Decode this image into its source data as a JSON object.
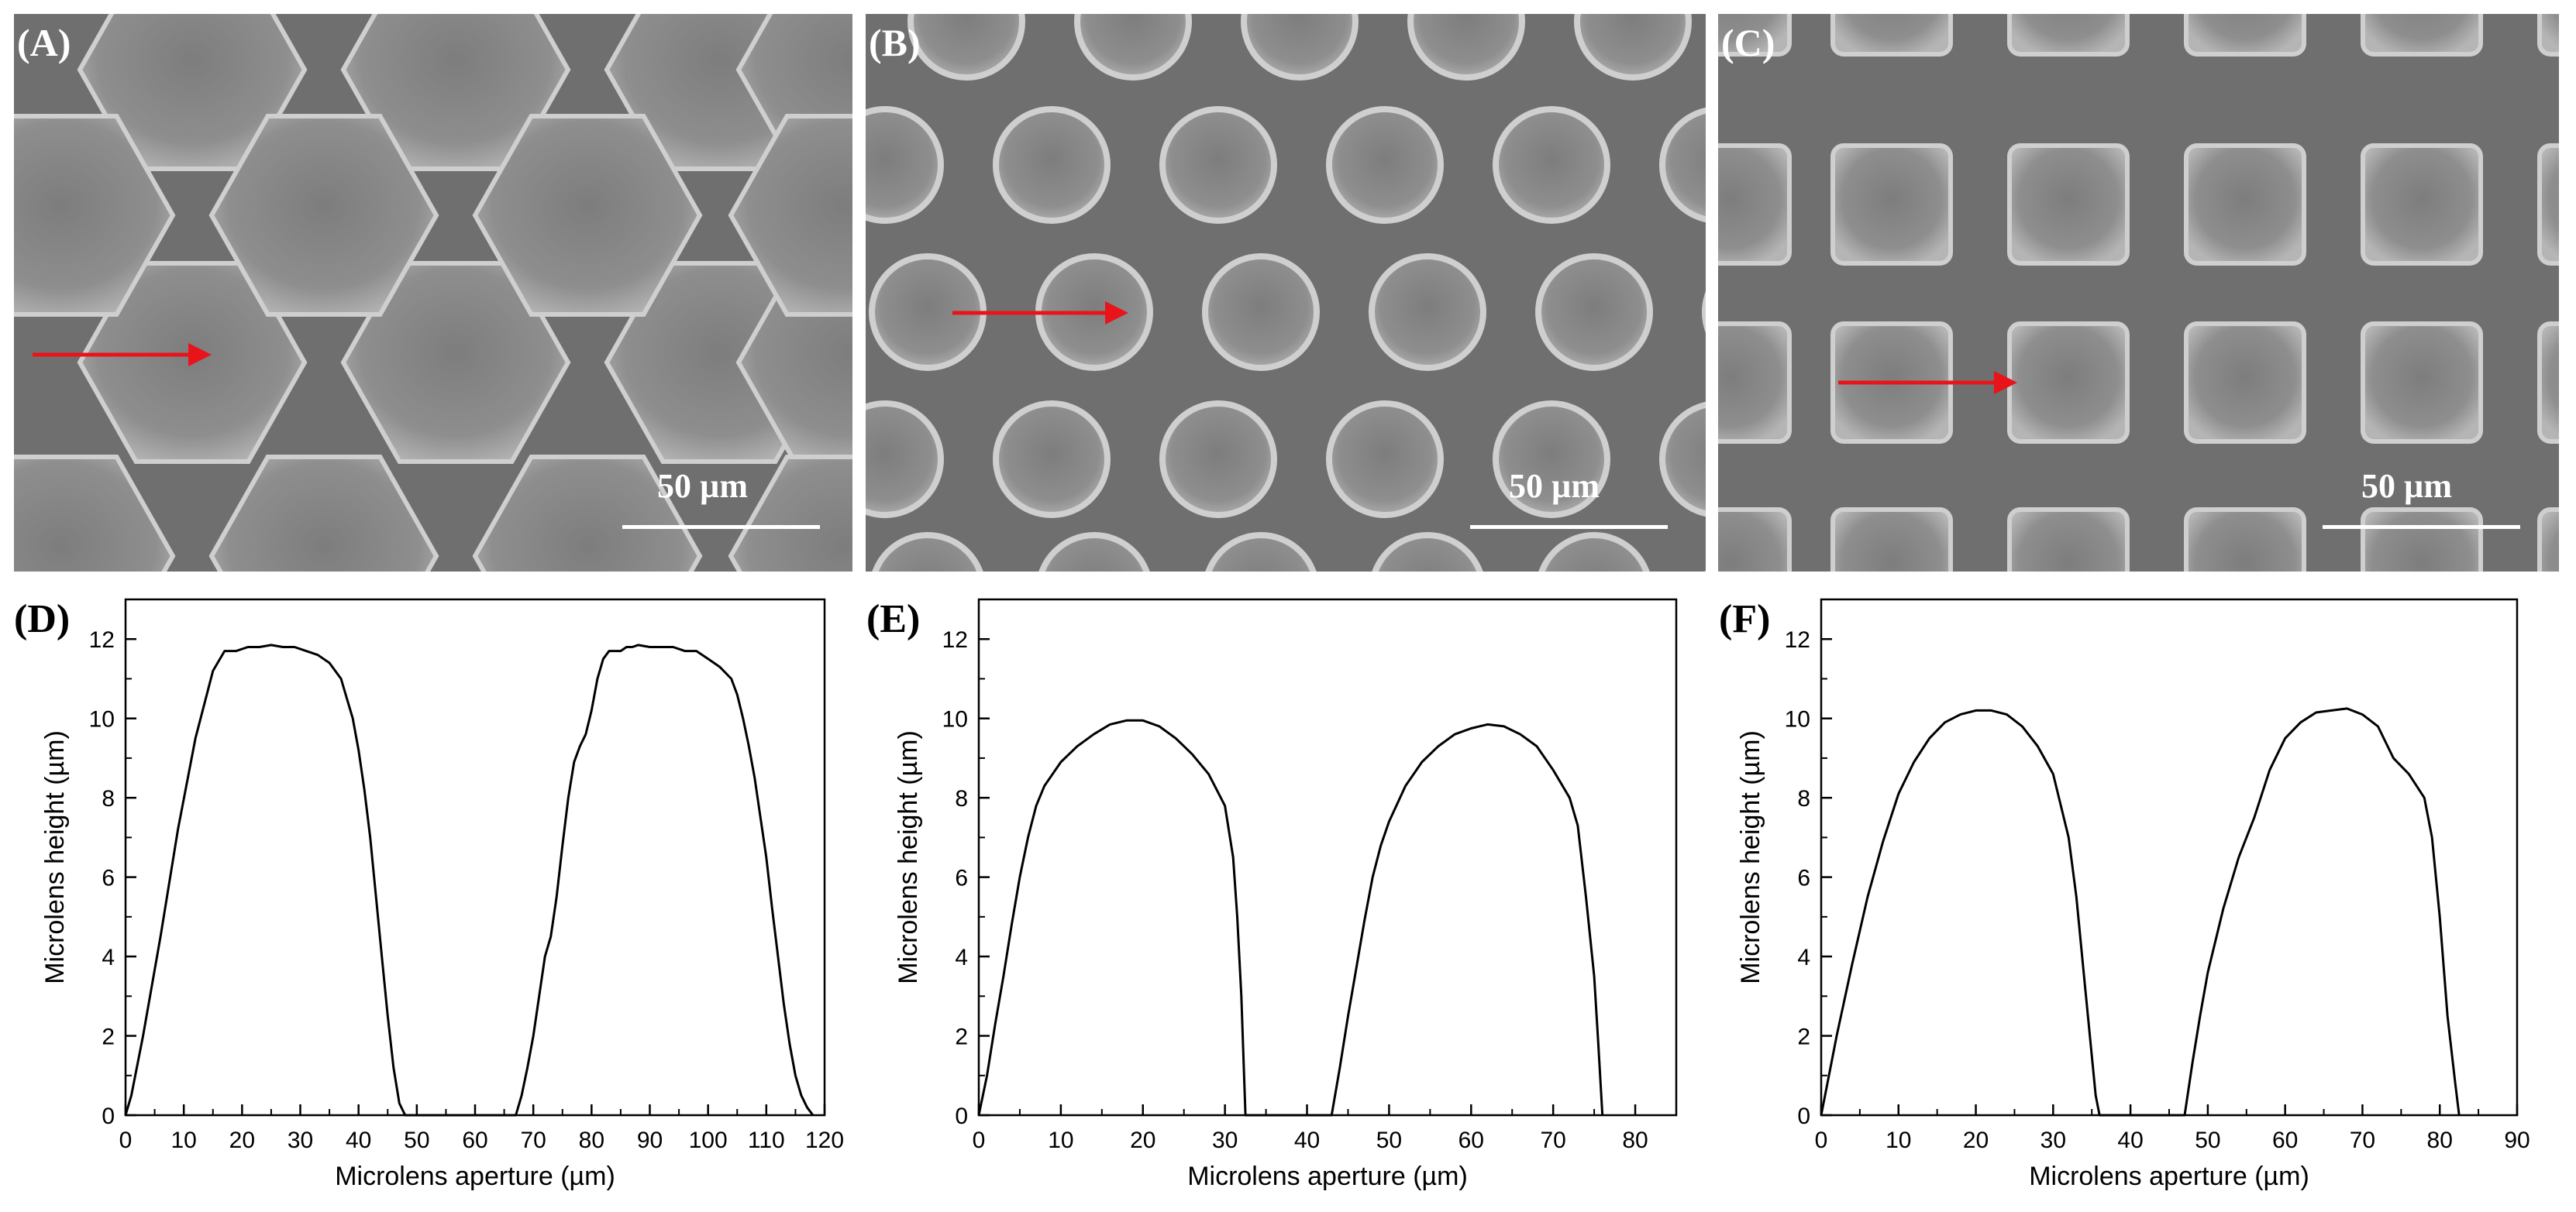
{
  "sem_panels": [
    {
      "label": "(A)",
      "scale_text": "50 µm",
      "shape": "hexagon"
    },
    {
      "label": "(B)",
      "scale_text": "50 µm",
      "shape": "circle"
    },
    {
      "label": "(C)",
      "scale_text": "50 µm",
      "shape": "square"
    }
  ],
  "colors": {
    "arrow": "#e8141a",
    "sem_bg": "#6f6f6f",
    "lens_fill": "#8a8a8a",
    "lens_rim": "#cfcfcf",
    "line": "#000000"
  },
  "chart_data": [
    {
      "panel_label": "(D)",
      "type": "line",
      "xlabel": "Microlens aperture (µm)",
      "ylabel": "Microlens height (µm)",
      "xlim": [
        0,
        120
      ],
      "ylim": [
        0,
        13
      ],
      "xticks": [
        "0",
        "10",
        "20",
        "30",
        "40",
        "50",
        "60",
        "70",
        "80",
        "90",
        "100",
        "110",
        "120"
      ],
      "yticks": [
        "0",
        "2",
        "4",
        "6",
        "8",
        "10",
        "12"
      ],
      "x": [
        0,
        1,
        3,
        6,
        9,
        12,
        15,
        17,
        19,
        21,
        23,
        25,
        27,
        29,
        31,
        33,
        35,
        37,
        38,
        39,
        40,
        41,
        42,
        43,
        44,
        45,
        46,
        47,
        48,
        67,
        68,
        69,
        70,
        71,
        72,
        73,
        74,
        75,
        76,
        77,
        78,
        79,
        80,
        81,
        82,
        83,
        84,
        85,
        86,
        87,
        88,
        90,
        92,
        94,
        96,
        98,
        100,
        102,
        104,
        105,
        106,
        107,
        108,
        109,
        110,
        111,
        112,
        113,
        114,
        115,
        116,
        117,
        118
      ],
      "y": [
        0,
        0.5,
        2.0,
        4.5,
        7.2,
        9.5,
        11.2,
        11.7,
        11.7,
        11.8,
        11.8,
        11.85,
        11.8,
        11.8,
        11.7,
        11.6,
        11.4,
        11.0,
        10.5,
        10.0,
        9.2,
        8.2,
        7.0,
        5.5,
        4.0,
        2.5,
        1.2,
        0.3,
        0,
        0,
        0.5,
        1.2,
        2.0,
        3.0,
        4.0,
        4.5,
        5.5,
        6.8,
        8.0,
        8.9,
        9.3,
        9.6,
        10.2,
        11.0,
        11.5,
        11.7,
        11.7,
        11.7,
        11.8,
        11.8,
        11.85,
        11.8,
        11.8,
        11.8,
        11.7,
        11.7,
        11.5,
        11.3,
        11.0,
        10.6,
        10.0,
        9.3,
        8.5,
        7.5,
        6.5,
        5.2,
        4.0,
        2.8,
        1.8,
        1.0,
        0.5,
        0.2,
        0
      ]
    },
    {
      "panel_label": "(E)",
      "type": "line",
      "xlabel": "Microlens aperture (µm)",
      "ylabel": "Microlens height (µm)",
      "xlim": [
        0,
        85
      ],
      "ylim": [
        0,
        13
      ],
      "xticks": [
        "0",
        "10",
        "20",
        "30",
        "40",
        "50",
        "60",
        "70",
        "80"
      ],
      "yticks": [
        "0",
        "2",
        "4",
        "6",
        "8",
        "10",
        "12"
      ],
      "x": [
        0,
        1,
        2,
        3,
        4,
        5,
        6,
        7,
        8,
        10,
        12,
        14,
        16,
        18,
        20,
        22,
        24,
        26,
        28,
        29,
        30,
        31,
        31.5,
        32,
        32.5,
        43,
        44,
        45,
        46,
        47,
        48,
        49,
        50,
        52,
        54,
        56,
        58,
        60,
        62,
        64,
        66,
        68,
        70,
        72,
        73,
        74,
        75,
        75.5,
        76
      ],
      "y": [
        0,
        1.0,
        2.3,
        3.5,
        4.8,
        6.0,
        7.0,
        7.8,
        8.3,
        8.9,
        9.3,
        9.6,
        9.85,
        9.95,
        9.95,
        9.8,
        9.5,
        9.1,
        8.6,
        8.2,
        7.8,
        6.5,
        5.0,
        3.0,
        0,
        0,
        1.2,
        2.5,
        3.7,
        4.9,
        6.0,
        6.8,
        7.4,
        8.3,
        8.9,
        9.3,
        9.6,
        9.75,
        9.85,
        9.8,
        9.6,
        9.3,
        8.7,
        8.0,
        7.3,
        5.5,
        3.5,
        1.8,
        0
      ]
    },
    {
      "panel_label": "(F)",
      "type": "line",
      "xlabel": "Microlens aperture (µm)",
      "ylabel": "Microlens height (µm)",
      "xlim": [
        0,
        90
      ],
      "ylim": [
        0,
        13
      ],
      "xticks": [
        "0",
        "10",
        "20",
        "30",
        "40",
        "50",
        "60",
        "70",
        "80",
        "90"
      ],
      "yticks": [
        "0",
        "2",
        "4",
        "6",
        "8",
        "10",
        "12"
      ],
      "x": [
        0,
        1,
        2,
        4,
        6,
        8,
        10,
        12,
        14,
        16,
        18,
        20,
        22,
        24,
        26,
        28,
        30,
        32,
        33,
        34,
        35,
        35.5,
        36,
        47,
        48,
        49,
        50,
        52,
        54,
        56,
        58,
        60,
        62,
        64,
        66,
        68,
        70,
        72,
        74,
        76,
        78,
        79,
        80,
        81,
        82,
        82.5
      ],
      "y": [
        0,
        1.0,
        2.0,
        3.8,
        5.5,
        6.9,
        8.1,
        8.9,
        9.5,
        9.9,
        10.1,
        10.2,
        10.2,
        10.1,
        9.8,
        9.3,
        8.6,
        7.0,
        5.5,
        3.5,
        1.5,
        0.5,
        0,
        0,
        1.3,
        2.5,
        3.6,
        5.2,
        6.5,
        7.5,
        8.7,
        9.5,
        9.9,
        10.15,
        10.2,
        10.25,
        10.1,
        9.8,
        9.0,
        8.6,
        8.0,
        7.0,
        5.0,
        2.5,
        0.8,
        0
      ]
    }
  ]
}
